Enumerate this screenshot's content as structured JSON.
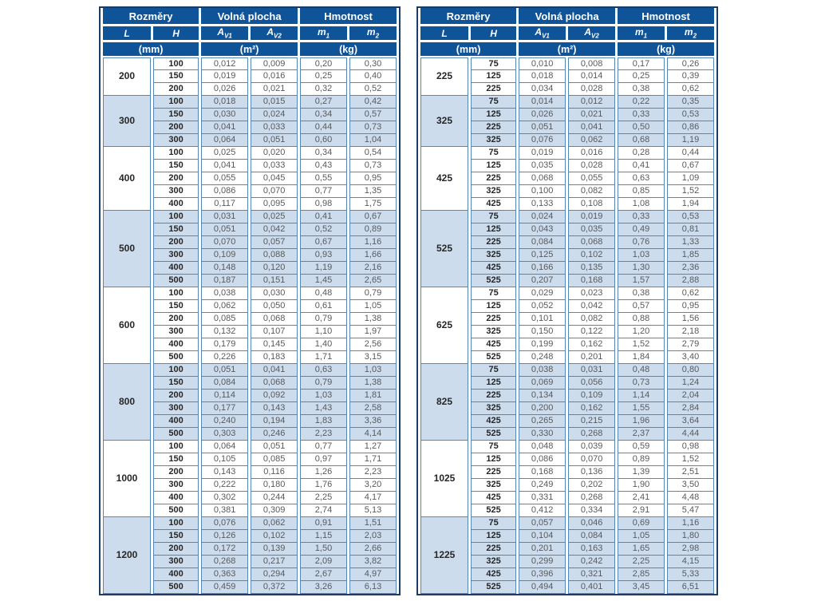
{
  "colors": {
    "header_bg": "#0f5499",
    "shade_bg": "#ccdcec",
    "grid_border": "#5587b6",
    "outer_border": "#1c3d63",
    "value_text": "#58595b",
    "dim_text": "#262626"
  },
  "header": {
    "rozmery": "Rozměry",
    "volna_plocha": "Volná plocha",
    "hmotnost": "Hmotnost",
    "l": "L",
    "h": "H",
    "av1": {
      "base": "A",
      "sub": "V1"
    },
    "av2": {
      "base": "A",
      "sub": "V2"
    },
    "m1": {
      "base": "m",
      "sub": "1"
    },
    "m2": {
      "base": "m",
      "sub": "2"
    },
    "unit_mm": "(mm)",
    "unit_m2": "(m²)",
    "unit_kg": "(kg)"
  },
  "tables": [
    {
      "side": "left",
      "groups": [
        {
          "l": "200",
          "rows": [
            [
              "100",
              "0,012",
              "0,009",
              "0,20",
              "0,30"
            ],
            [
              "150",
              "0,019",
              "0,016",
              "0,25",
              "0,40"
            ],
            [
              "200",
              "0,026",
              "0,021",
              "0,32",
              "0,52"
            ]
          ]
        },
        {
          "l": "300",
          "rows": [
            [
              "100",
              "0,018",
              "0,015",
              "0,27",
              "0,42"
            ],
            [
              "150",
              "0,030",
              "0,024",
              "0,34",
              "0,57"
            ],
            [
              "200",
              "0,041",
              "0,033",
              "0,44",
              "0,73"
            ],
            [
              "300",
              "0,064",
              "0,051",
              "0,60",
              "1,04"
            ]
          ]
        },
        {
          "l": "400",
          "rows": [
            [
              "100",
              "0,025",
              "0,020",
              "0,34",
              "0,54"
            ],
            [
              "150",
              "0,041",
              "0,033",
              "0,43",
              "0,73"
            ],
            [
              "200",
              "0,055",
              "0,045",
              "0,55",
              "0,95"
            ],
            [
              "300",
              "0,086",
              "0,070",
              "0,77",
              "1,35"
            ],
            [
              "400",
              "0,117",
              "0,095",
              "0,98",
              "1,75"
            ]
          ]
        },
        {
          "l": "500",
          "rows": [
            [
              "100",
              "0,031",
              "0,025",
              "0,41",
              "0,67"
            ],
            [
              "150",
              "0,051",
              "0,042",
              "0,52",
              "0,89"
            ],
            [
              "200",
              "0,070",
              "0,057",
              "0,67",
              "1,16"
            ],
            [
              "300",
              "0,109",
              "0,088",
              "0,93",
              "1,66"
            ],
            [
              "400",
              "0,148",
              "0,120",
              "1,19",
              "2,16"
            ],
            [
              "500",
              "0,187",
              "0,151",
              "1,45",
              "2,65"
            ]
          ]
        },
        {
          "l": "600",
          "rows": [
            [
              "100",
              "0,038",
              "0,030",
              "0,48",
              "0,79"
            ],
            [
              "150",
              "0,062",
              "0,050",
              "0,61",
              "1,05"
            ],
            [
              "200",
              "0,085",
              "0,068",
              "0,79",
              "1,38"
            ],
            [
              "300",
              "0,132",
              "0,107",
              "1,10",
              "1,97"
            ],
            [
              "400",
              "0,179",
              "0,145",
              "1,40",
              "2,56"
            ],
            [
              "500",
              "0,226",
              "0,183",
              "1,71",
              "3,15"
            ]
          ]
        },
        {
          "l": "800",
          "rows": [
            [
              "100",
              "0,051",
              "0,041",
              "0,63",
              "1,03"
            ],
            [
              "150",
              "0,084",
              "0,068",
              "0,79",
              "1,38"
            ],
            [
              "200",
              "0,114",
              "0,092",
              "1,03",
              "1,81"
            ],
            [
              "300",
              "0,177",
              "0,143",
              "1,43",
              "2,58"
            ],
            [
              "400",
              "0,240",
              "0,194",
              "1,83",
              "3,36"
            ],
            [
              "500",
              "0,303",
              "0,246",
              "2,23",
              "4,14"
            ]
          ]
        },
        {
          "l": "1000",
          "rows": [
            [
              "100",
              "0,064",
              "0,051",
              "0,77",
              "1,27"
            ],
            [
              "150",
              "0,105",
              "0,085",
              "0,97",
              "1,71"
            ],
            [
              "200",
              "0,143",
              "0,116",
              "1,26",
              "2,23"
            ],
            [
              "300",
              "0,222",
              "0,180",
              "1,76",
              "3,20"
            ],
            [
              "400",
              "0,302",
              "0,244",
              "2,25",
              "4,17"
            ],
            [
              "500",
              "0,381",
              "0,309",
              "2,74",
              "5,13"
            ]
          ]
        },
        {
          "l": "1200",
          "rows": [
            [
              "100",
              "0,076",
              "0,062",
              "0,91",
              "1,51"
            ],
            [
              "150",
              "0,126",
              "0,102",
              "1,15",
              "2,03"
            ],
            [
              "200",
              "0,172",
              "0,139",
              "1,50",
              "2,66"
            ],
            [
              "300",
              "0,268",
              "0,217",
              "2,09",
              "3,82"
            ],
            [
              "400",
              "0,363",
              "0,294",
              "2,67",
              "4,97"
            ],
            [
              "500",
              "0,459",
              "0,372",
              "3,26",
              "6,13"
            ]
          ]
        }
      ]
    },
    {
      "side": "right",
      "groups": [
        {
          "l": "225",
          "rows": [
            [
              "75",
              "0,010",
              "0,008",
              "0,17",
              "0,26"
            ],
            [
              "125",
              "0,018",
              "0,014",
              "0,25",
              "0,39"
            ],
            [
              "225",
              "0,034",
              "0,028",
              "0,38",
              "0,62"
            ]
          ]
        },
        {
          "l": "325",
          "rows": [
            [
              "75",
              "0,014",
              "0,012",
              "0,22",
              "0,35"
            ],
            [
              "125",
              "0,026",
              "0,021",
              "0,33",
              "0,53"
            ],
            [
              "225",
              "0,051",
              "0,041",
              "0,50",
              "0,86"
            ],
            [
              "325",
              "0,076",
              "0,062",
              "0,68",
              "1,19"
            ]
          ]
        },
        {
          "l": "425",
          "rows": [
            [
              "75",
              "0,019",
              "0,016",
              "0,28",
              "0,44"
            ],
            [
              "125",
              "0,035",
              "0,028",
              "0,41",
              "0,67"
            ],
            [
              "225",
              "0,068",
              "0,055",
              "0,63",
              "1,09"
            ],
            [
              "325",
              "0,100",
              "0,082",
              "0,85",
              "1,52"
            ],
            [
              "425",
              "0,133",
              "0,108",
              "1,08",
              "1,94"
            ]
          ]
        },
        {
          "l": "525",
          "rows": [
            [
              "75",
              "0,024",
              "0,019",
              "0,33",
              "0,53"
            ],
            [
              "125",
              "0,043",
              "0,035",
              "0,49",
              "0,81"
            ],
            [
              "225",
              "0,084",
              "0,068",
              "0,76",
              "1,33"
            ],
            [
              "325",
              "0,125",
              "0,102",
              "1,03",
              "1,85"
            ],
            [
              "425",
              "0,166",
              "0,135",
              "1,30",
              "2,36"
            ],
            [
              "525",
              "0,207",
              "0,168",
              "1,57",
              "2,88"
            ]
          ]
        },
        {
          "l": "625",
          "rows": [
            [
              "75",
              "0,029",
              "0,023",
              "0,38",
              "0,62"
            ],
            [
              "125",
              "0,052",
              "0,042",
              "0,57",
              "0,95"
            ],
            [
              "225",
              "0,101",
              "0,082",
              "0,88",
              "1,56"
            ],
            [
              "325",
              "0,150",
              "0,122",
              "1,20",
              "2,18"
            ],
            [
              "425",
              "0,199",
              "0,162",
              "1,52",
              "2,79"
            ],
            [
              "525",
              "0,248",
              "0,201",
              "1,84",
              "3,40"
            ]
          ]
        },
        {
          "l": "825",
          "rows": [
            [
              "75",
              "0,038",
              "0,031",
              "0,48",
              "0,80"
            ],
            [
              "125",
              "0,069",
              "0,056",
              "0,73",
              "1,24"
            ],
            [
              "225",
              "0,134",
              "0,109",
              "1,14",
              "2,04"
            ],
            [
              "325",
              "0,200",
              "0,162",
              "1,55",
              "2,84"
            ],
            [
              "425",
              "0,265",
              "0,215",
              "1,96",
              "3,64"
            ],
            [
              "525",
              "0,330",
              "0,268",
              "2,37",
              "4,44"
            ]
          ]
        },
        {
          "l": "1025",
          "rows": [
            [
              "75",
              "0,048",
              "0,039",
              "0,59",
              "0,98"
            ],
            [
              "125",
              "0,086",
              "0,070",
              "0,89",
              "1,52"
            ],
            [
              "225",
              "0,168",
              "0,136",
              "1,39",
              "2,51"
            ],
            [
              "325",
              "0,249",
              "0,202",
              "1,90",
              "3,50"
            ],
            [
              "425",
              "0,331",
              "0,268",
              "2,41",
              "4,48"
            ],
            [
              "525",
              "0,412",
              "0,334",
              "2,91",
              "5,47"
            ]
          ]
        },
        {
          "l": "1225",
          "rows": [
            [
              "75",
              "0,057",
              "0,046",
              "0,69",
              "1,16"
            ],
            [
              "125",
              "0,104",
              "0,084",
              "1,05",
              "1,80"
            ],
            [
              "225",
              "0,201",
              "0,163",
              "1,65",
              "2,98"
            ],
            [
              "325",
              "0,299",
              "0,242",
              "2,25",
              "4,15"
            ],
            [
              "425",
              "0,396",
              "0,321",
              "2,85",
              "5,33"
            ],
            [
              "525",
              "0,494",
              "0,401",
              "3,45",
              "6,51"
            ]
          ]
        }
      ]
    }
  ]
}
